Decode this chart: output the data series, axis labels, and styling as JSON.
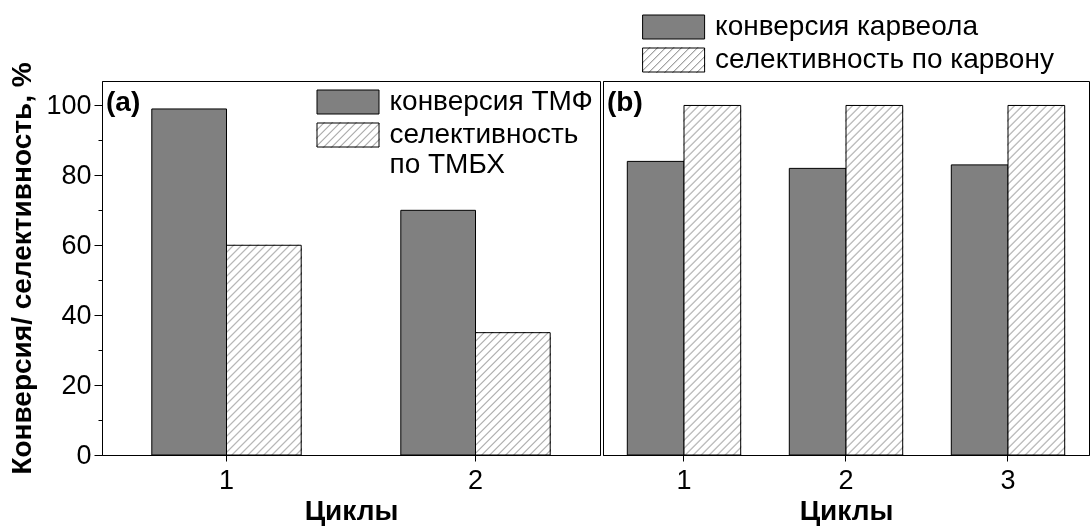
{
  "chart_data": [
    {
      "type": "bar",
      "categories": [
        "1",
        "2"
      ],
      "xlabel": "Циклы",
      "ylabel": "Конверсия/ селективность, %",
      "annotations": [
        "(a)"
      ],
      "series": [
        {
          "name": "конверсия ТМФ",
          "color": "#808080",
          "values": [
            99,
            70
          ]
        },
        {
          "name": "селективность по ТМБХ",
          "color": "#ffffff",
          "values": [
            60,
            35
          ]
        }
      ],
      "ylim": [
        0,
        107
      ],
      "yticks": [
        0,
        {
          "value": 10,
          "label": null
        },
        20,
        {
          "value": 30,
          "label": null
        },
        40,
        {
          "value": 50,
          "label": null
        },
        60,
        {
          "value": 70,
          "label": null
        },
        80,
        {
          "value": 90,
          "label": null
        },
        100
      ],
      "legend": "top right"
    },
    {
      "type": "bar",
      "categories": [
        "1",
        "2",
        "3"
      ],
      "xlabel": "Циклы",
      "annotations": [
        "(b)"
      ],
      "series": [
        {
          "name": "конверсия карвеола",
          "color": "#808080",
          "values": [
            84,
            82,
            83
          ]
        },
        {
          "name": "селективность по карвону",
          "color": "#ffffff",
          "values": [
            100,
            100,
            100
          ]
        }
      ],
      "ylim": [
        0,
        107
      ],
      "tick_labels": "x",
      "legend": "top"
    }
  ]
}
